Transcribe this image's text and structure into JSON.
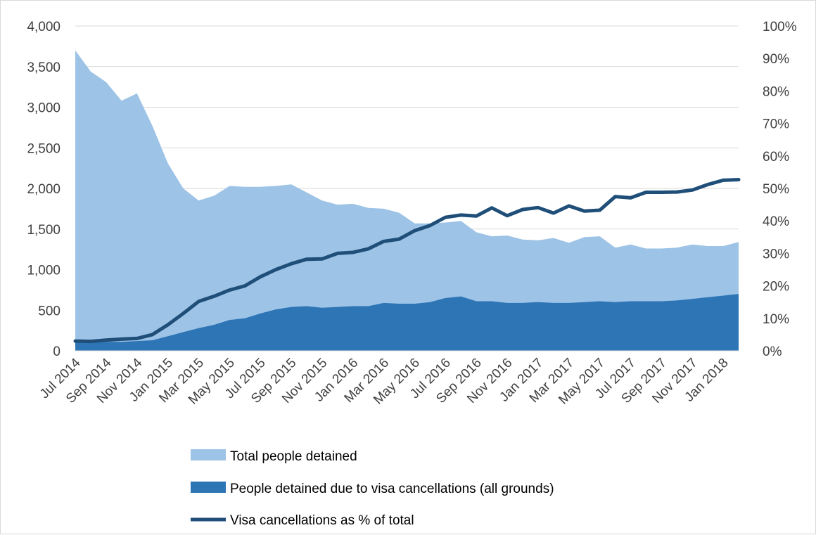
{
  "chart_data": {
    "type": "area",
    "colors": {
      "total": "#9dc3e6",
      "visa": "#2e75b6",
      "pct": "#1f4e79",
      "grid": "#d9d9d9"
    },
    "y_left": {
      "min": 0,
      "max": 4000,
      "ticks": [
        "0",
        "500",
        "1,000",
        "1,500",
        "2,000",
        "2,500",
        "3,000",
        "3,500",
        "4,000"
      ]
    },
    "y_right": {
      "min": 0,
      "max": 100,
      "ticks": [
        "0%",
        "10%",
        "20%",
        "30%",
        "40%",
        "50%",
        "60%",
        "70%",
        "80%",
        "90%",
        "100%"
      ]
    },
    "grid": true,
    "x": [
      "Jul 2014",
      "Aug 2014",
      "Sep 2014",
      "Oct 2014",
      "Nov 2014",
      "Dec 2014",
      "Jan 2015",
      "Feb 2015",
      "Mar 2015",
      "Apr 2015",
      "May 2015",
      "Jun 2015",
      "Jul 2015",
      "Aug 2015",
      "Sep 2015",
      "Oct 2015",
      "Nov 2015",
      "Dec 2015",
      "Jan 2016",
      "Feb 2016",
      "Mar 2016",
      "Apr 2016",
      "May 2016",
      "Jun 2016",
      "Jul 2016",
      "Aug 2016",
      "Sep 2016",
      "Oct 2016",
      "Nov 2016",
      "Dec 2016",
      "Jan 2017",
      "Feb 2017",
      "Mar 2017",
      "Apr 2017",
      "May 2017",
      "Jun 2017",
      "Jul 2017",
      "Aug 2017",
      "Sep 2017",
      "Oct 2017",
      "Nov 2017",
      "Dec 2017",
      "Jan 2018",
      "Feb 2018"
    ],
    "x_tick_labels": [
      "Jul 2014",
      "Sep 2014",
      "Nov 2014",
      "Jan 2015",
      "Mar 2015",
      "May 2015",
      "Jul 2015",
      "Sep 2015",
      "Nov 2015",
      "Jan 2016",
      "Mar 2016",
      "May 2016",
      "Jul 2016",
      "Sep 2016",
      "Nov 2016",
      "Jan 2017",
      "Mar 2017",
      "May 2017",
      "Jul 2017",
      "Sep 2017",
      "Nov 2017",
      "Jan 2018"
    ],
    "series": [
      {
        "name": "Total people detained",
        "kind": "area",
        "axis": "left",
        "values": [
          3700,
          3440,
          3310,
          3080,
          3170,
          2770,
          2310,
          2000,
          1850,
          1910,
          2030,
          2020,
          2020,
          2030,
          2050,
          1950,
          1850,
          1800,
          1810,
          1760,
          1750,
          1700,
          1570,
          1570,
          1580,
          1600,
          1460,
          1410,
          1420,
          1370,
          1360,
          1390,
          1330,
          1400,
          1410,
          1270,
          1310,
          1260,
          1260,
          1270,
          1310,
          1290,
          1290,
          1340
        ]
      },
      {
        "name": "People detained due to visa cancellations (all grounds)",
        "kind": "area",
        "axis": "left",
        "values": [
          100,
          100,
          110,
          110,
          120,
          130,
          180,
          230,
          280,
          320,
          380,
          400,
          460,
          510,
          540,
          550,
          530,
          540,
          550,
          550,
          590,
          580,
          580,
          600,
          650,
          670,
          610,
          610,
          590,
          590,
          600,
          590,
          590,
          600,
          610,
          600,
          610,
          610,
          610,
          620,
          640,
          660,
          680,
          700
        ]
      },
      {
        "name": "Visa cancellations as % of total",
        "kind": "line",
        "axis": "right",
        "values": [
          3,
          2.9,
          3.3,
          3.6,
          3.8,
          5,
          8,
          11.5,
          15.2,
          16.8,
          18.7,
          20,
          22.8,
          25,
          26.8,
          28.2,
          28.3,
          30,
          30.3,
          31.4,
          33.7,
          34.4,
          37,
          38.6,
          41.1,
          41.8,
          41.5,
          44,
          41.6,
          43.5,
          44.1,
          42.4,
          44.6,
          43,
          43.3,
          47.5,
          47.1,
          48.8,
          48.8,
          48.9,
          49.5,
          51.2,
          52.5,
          52.7
        ]
      }
    ],
    "legend_placement": "bottom-center"
  }
}
